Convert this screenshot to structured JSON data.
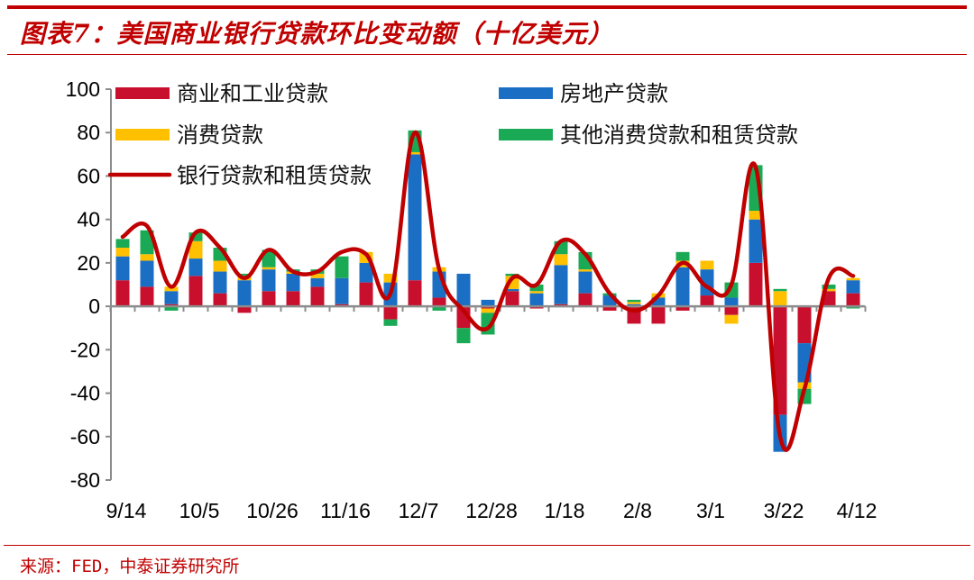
{
  "header": {
    "title": "图表7：美国商业银行贷款环比变动额（十亿美元）"
  },
  "footer": {
    "source": "来源：FED，中泰证券研究所"
  },
  "colors": {
    "commercial_industrial": "#c8102e",
    "real_estate": "#1a6fc4",
    "consumer": "#ffc000",
    "other": "#1aaa55",
    "total_line": "#c00000",
    "accent": "#c00000",
    "axis": "#8c8c8c"
  },
  "chart_data": {
    "type": "bar",
    "stacked": true,
    "title": "美国商业银行贷款环比变动额（十亿美元）",
    "xlabel": "",
    "ylabel": "",
    "ylim": [
      -80,
      100
    ],
    "yticks": [
      100,
      80,
      60,
      40,
      20,
      0,
      -20,
      -40,
      -60,
      -80
    ],
    "x_tick_labels": [
      "9/14",
      "10/5",
      "10/26",
      "11/16",
      "12/7",
      "12/28",
      "1/18",
      "2/8",
      "3/1",
      "3/22",
      "4/12"
    ],
    "x_tick_label_every": 3,
    "grid": false,
    "legend_position": "top-inside",
    "categories": [
      "9/14",
      "9/21",
      "9/28",
      "10/5",
      "10/12",
      "10/19",
      "10/26",
      "11/2",
      "11/9",
      "11/16",
      "11/23",
      "11/30",
      "12/7",
      "12/14",
      "12/21",
      "12/28",
      "1/4",
      "1/11",
      "1/18",
      "1/25",
      "2/1",
      "2/8",
      "2/15",
      "2/22",
      "3/1",
      "3/8",
      "3/15",
      "3/22",
      "3/29",
      "4/5",
      "4/12"
    ],
    "series": [
      {
        "name": "商业和工业贷款",
        "kind": "bar",
        "color": "#c8102e",
        "values": [
          12,
          9,
          1,
          14,
          6,
          -3,
          7,
          7,
          9,
          1,
          11,
          -6,
          12,
          4,
          -10,
          -1,
          7,
          -1,
          1,
          6,
          -2,
          -8,
          -8,
          -2,
          5,
          -4,
          20,
          -50,
          -17,
          7,
          6
        ]
      },
      {
        "name": "房地产贷款",
        "kind": "bar",
        "color": "#1a6fc4",
        "values": [
          11,
          12,
          6,
          8,
          10,
          12,
          10,
          8,
          4,
          12,
          9,
          11,
          58,
          12,
          15,
          3,
          1,
          6,
          18,
          10,
          5,
          1,
          4,
          18,
          12,
          4,
          20,
          -17,
          -18,
          0,
          6
        ]
      },
      {
        "name": "消费贷款",
        "kind": "bar",
        "color": "#ffc000",
        "values": [
          4,
          3,
          2,
          8,
          5,
          2,
          1,
          1,
          2,
          0,
          5,
          4,
          1,
          2,
          0,
          -2,
          6,
          1,
          5,
          1,
          0,
          1,
          2,
          3,
          4,
          -4,
          4,
          7,
          -3,
          1,
          1
        ]
      },
      {
        "name": "其他消费贷款和租赁贷款",
        "kind": "bar",
        "color": "#1aaa55",
        "values": [
          4,
          11,
          -2,
          4,
          6,
          1,
          8,
          1,
          2,
          10,
          0,
          -3,
          10,
          -2,
          -7,
          -10,
          1,
          3,
          6,
          8,
          1,
          1,
          0,
          4,
          0,
          7,
          21,
          1,
          -7,
          2,
          -1
        ]
      },
      {
        "name": "银行贷款和租赁贷款",
        "kind": "line",
        "color": "#c00000",
        "values": [
          32,
          37,
          9,
          34,
          27,
          13,
          26,
          16,
          16,
          25,
          24,
          6,
          80,
          17,
          -2,
          -10,
          13,
          10,
          30,
          24,
          6,
          -2,
          5,
          20,
          9,
          10,
          64,
          -60,
          -38,
          13,
          14
        ]
      }
    ]
  },
  "legend": {
    "items": [
      {
        "label": "商业和工业贷款",
        "type": "bar",
        "color": "#c8102e"
      },
      {
        "label": "房地产贷款",
        "type": "bar",
        "color": "#1a6fc4"
      },
      {
        "label": "消费贷款",
        "type": "bar",
        "color": "#ffc000"
      },
      {
        "label": "其他消费贷款和租赁贷款",
        "type": "bar",
        "color": "#1aaa55"
      },
      {
        "label": "银行贷款和租赁贷款",
        "type": "line",
        "color": "#c00000"
      }
    ]
  }
}
